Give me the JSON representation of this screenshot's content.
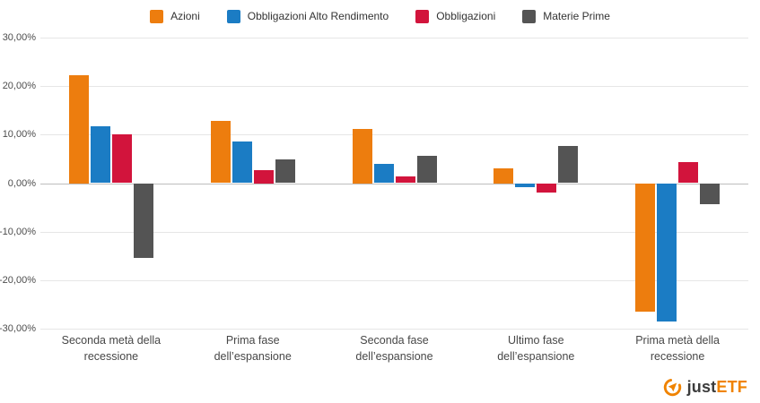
{
  "legend": {
    "items": [
      {
        "label": "Azioni",
        "color": "#ed7d0e"
      },
      {
        "label": "Obbligazioni Alto Rendimento",
        "color": "#1b7cc4"
      },
      {
        "label": "Obbligazioni",
        "color": "#d2143c"
      },
      {
        "label": "Materie Prime",
        "color": "#545454"
      }
    ]
  },
  "chart_data": {
    "type": "bar",
    "title": "",
    "xlabel": "",
    "ylabel": "",
    "categories": [
      "Seconda metà della recessione",
      "Prima fase dell’espansione",
      "Seconda fase dell’espansione",
      "Ultimo fase dell’espansione",
      "Prima metà della recessione"
    ],
    "series": [
      {
        "name": "Azioni",
        "color": "#ed7d0e",
        "values": [
          22.2,
          12.8,
          11.1,
          3.0,
          -26.5
        ]
      },
      {
        "name": "Obbligazioni Alto Rendimento",
        "color": "#1b7cc4",
        "values": [
          11.8,
          8.6,
          4.0,
          -0.8,
          -28.5
        ]
      },
      {
        "name": "Obbligazioni",
        "color": "#d2143c",
        "values": [
          10.0,
          2.7,
          1.4,
          -1.9,
          4.4
        ]
      },
      {
        "name": "Materie Prime",
        "color": "#545454",
        "values": [
          -15.4,
          4.9,
          5.6,
          7.6,
          -4.3
        ]
      }
    ],
    "ylim": [
      -30,
      30
    ],
    "ytick_step": 10,
    "ytick_labels": [
      "30,00%",
      "20,00%",
      "10,00%",
      "0,00%",
      "-10,00%",
      "-20,00%",
      "-30,00%"
    ],
    "grid": true,
    "legend_position": "top"
  },
  "branding": {
    "logo_just": "just",
    "logo_etf": "ETF",
    "logo_color": "#f08300"
  }
}
